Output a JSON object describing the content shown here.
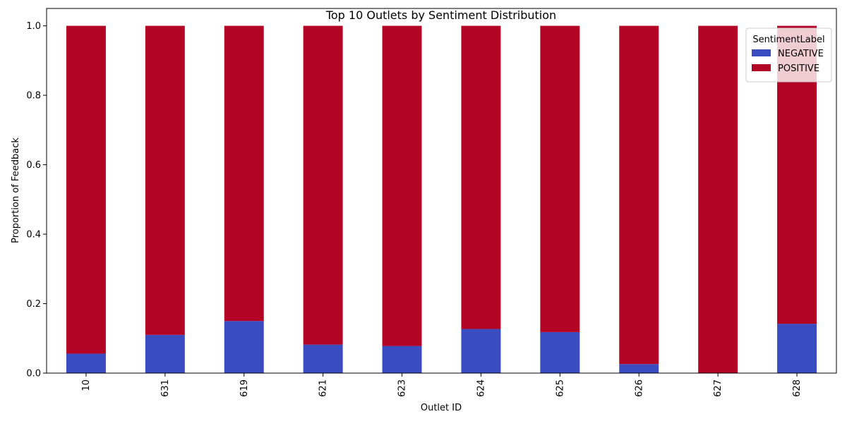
{
  "chart_data": {
    "type": "bar",
    "stacked": true,
    "title": "Top 10 Outlets by Sentiment Distribution",
    "xlabel": "Outlet ID",
    "ylabel": "Proportion of Feedback",
    "categories": [
      "10",
      "631",
      "619",
      "621",
      "623",
      "624",
      "625",
      "626",
      "627",
      "628"
    ],
    "series": [
      {
        "name": "NEGATIVE",
        "color": "#3b4cc0",
        "values": [
          0.056,
          0.11,
          0.15,
          0.082,
          0.078,
          0.127,
          0.118,
          0.026,
          0.0,
          0.142
        ]
      },
      {
        "name": "POSITIVE",
        "color": "#b40426",
        "values": [
          0.944,
          0.89,
          0.85,
          0.918,
          0.922,
          0.873,
          0.882,
          0.974,
          1.0,
          0.858
        ]
      }
    ],
    "ylim": [
      0,
      1.05
    ],
    "yticks": [
      "0.0",
      "0.2",
      "0.4",
      "0.6",
      "0.8",
      "1.0"
    ],
    "ytick_values": [
      0,
      0.2,
      0.4,
      0.6,
      0.8,
      1.0
    ],
    "grid": false,
    "legend": {
      "title": "SentimentLabel",
      "placement": "top-right"
    }
  }
}
